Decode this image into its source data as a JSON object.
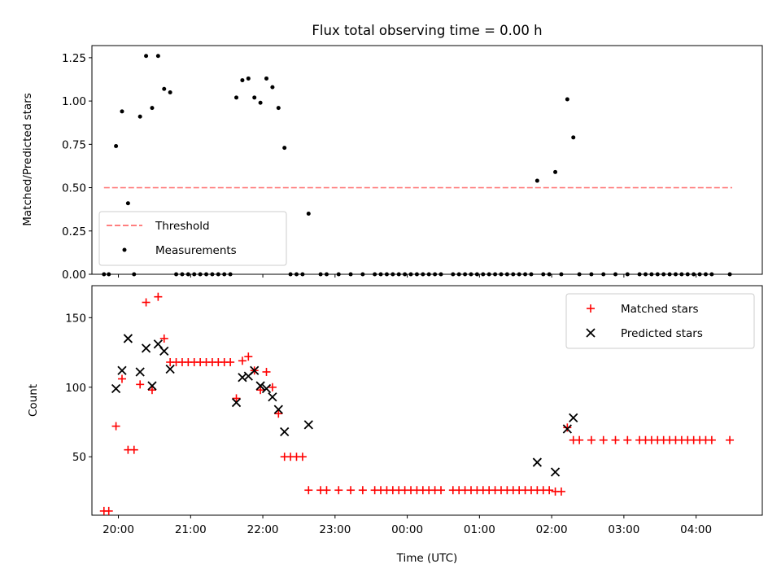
{
  "title": "Flux total observing time = 0.00 h",
  "colors": {
    "threshold": "#ff7f7f",
    "measurement": "#000000",
    "matched": "#ff0000",
    "predicted": "#000000"
  },
  "chart_data": [
    {
      "type": "scatter",
      "ylabel": "Matched/Predicted stars",
      "xlim": [
        "19:38",
        "04:55"
      ],
      "ylim": [
        0,
        1.32
      ],
      "yticks": [
        "0.00",
        "0.25",
        "0.50",
        "0.75",
        "1.00",
        "1.25"
      ],
      "legend": {
        "placement": "lower-left",
        "entries": [
          "Threshold",
          "Measurements"
        ]
      },
      "threshold": {
        "name": "Threshold",
        "value": 0.5,
        "x": [
          "19:48",
          "04:30"
        ]
      },
      "series": [
        {
          "name": "Measurements",
          "marker": "dot",
          "points": [
            [
              "19:48",
              0
            ],
            [
              "19:52",
              0
            ],
            [
              "19:58",
              0.74
            ],
            [
              "20:03",
              0.94
            ],
            [
              "20:08",
              0.41
            ],
            [
              "20:13",
              0
            ],
            [
              "20:18",
              0.91
            ],
            [
              "20:23",
              1.26
            ],
            [
              "20:28",
              0.96
            ],
            [
              "20:33",
              1.26
            ],
            [
              "20:38",
              1.07
            ],
            [
              "20:43",
              1.05
            ],
            [
              "20:48",
              0
            ],
            [
              "20:53",
              0
            ],
            [
              "20:58",
              0
            ],
            [
              "21:03",
              0
            ],
            [
              "21:08",
              0
            ],
            [
              "21:13",
              0
            ],
            [
              "21:18",
              0
            ],
            [
              "21:23",
              0
            ],
            [
              "21:28",
              0
            ],
            [
              "21:33",
              0
            ],
            [
              "21:38",
              1.02
            ],
            [
              "21:43",
              1.12
            ],
            [
              "21:48",
              1.13
            ],
            [
              "21:53",
              1.02
            ],
            [
              "21:58",
              0.99
            ],
            [
              "22:03",
              1.13
            ],
            [
              "22:08",
              1.08
            ],
            [
              "22:13",
              0.96
            ],
            [
              "22:18",
              0.73
            ],
            [
              "22:23",
              0
            ],
            [
              "22:28",
              0
            ],
            [
              "22:33",
              0
            ],
            [
              "22:38",
              0.35
            ],
            [
              "22:48",
              0
            ],
            [
              "22:53",
              0
            ],
            [
              "23:03",
              0
            ],
            [
              "23:13",
              0
            ],
            [
              "23:23",
              0
            ],
            [
              "23:33",
              0
            ],
            [
              "23:38",
              0
            ],
            [
              "23:43",
              0
            ],
            [
              "23:48",
              0
            ],
            [
              "23:53",
              0
            ],
            [
              "23:58",
              0
            ],
            [
              "00:03",
              0
            ],
            [
              "00:08",
              0
            ],
            [
              "00:13",
              0
            ],
            [
              "00:18",
              0
            ],
            [
              "00:23",
              0
            ],
            [
              "00:28",
              0
            ],
            [
              "00:38",
              0
            ],
            [
              "00:43",
              0
            ],
            [
              "00:48",
              0
            ],
            [
              "00:53",
              0
            ],
            [
              "00:58",
              0
            ],
            [
              "01:03",
              0
            ],
            [
              "01:08",
              0
            ],
            [
              "01:13",
              0
            ],
            [
              "01:18",
              0
            ],
            [
              "01:23",
              0
            ],
            [
              "01:28",
              0
            ],
            [
              "01:33",
              0
            ],
            [
              "01:38",
              0
            ],
            [
              "01:43",
              0
            ],
            [
              "01:48",
              0.54
            ],
            [
              "01:53",
              0
            ],
            [
              "01:58",
              0
            ],
            [
              "02:03",
              0.59
            ],
            [
              "02:08",
              0
            ],
            [
              "02:13",
              1.01
            ],
            [
              "02:18",
              0.79
            ],
            [
              "02:23",
              0
            ],
            [
              "02:33",
              0
            ],
            [
              "02:43",
              0
            ],
            [
              "02:53",
              0
            ],
            [
              "03:03",
              0
            ],
            [
              "03:13",
              0
            ],
            [
              "03:18",
              0
            ],
            [
              "03:23",
              0
            ],
            [
              "03:28",
              0
            ],
            [
              "03:33",
              0
            ],
            [
              "03:38",
              0
            ],
            [
              "03:43",
              0
            ],
            [
              "03:48",
              0
            ],
            [
              "03:53",
              0
            ],
            [
              "03:58",
              0
            ],
            [
              "04:03",
              0
            ],
            [
              "04:08",
              0
            ],
            [
              "04:13",
              0
            ],
            [
              "04:28",
              0
            ]
          ]
        }
      ]
    },
    {
      "type": "scatter",
      "ylabel": "Count",
      "xlabel": "Time (UTC)",
      "xlim": [
        "19:38",
        "04:55"
      ],
      "ylim": [
        8,
        173
      ],
      "yticks": [
        "50",
        "100",
        "150"
      ],
      "xticks": [
        "20:00",
        "21:00",
        "22:00",
        "23:00",
        "00:00",
        "01:00",
        "02:00",
        "03:00",
        "04:00"
      ],
      "legend": {
        "placement": "upper-right",
        "entries": [
          "Matched stars",
          "Predicted stars"
        ]
      },
      "series": [
        {
          "name": "Matched stars",
          "marker": "plus",
          "points": [
            [
              "19:48",
              11
            ],
            [
              "19:52",
              11
            ],
            [
              "19:58",
              72
            ],
            [
              "20:03",
              106
            ],
            [
              "20:08",
              55
            ],
            [
              "20:13",
              55
            ],
            [
              "20:18",
              102
            ],
            [
              "20:23",
              161
            ],
            [
              "20:28",
              98
            ],
            [
              "20:33",
              165
            ],
            [
              "20:38",
              135
            ],
            [
              "20:43",
              118
            ],
            [
              "20:48",
              118
            ],
            [
              "20:53",
              118
            ],
            [
              "20:58",
              118
            ],
            [
              "21:03",
              118
            ],
            [
              "21:08",
              118
            ],
            [
              "21:13",
              118
            ],
            [
              "21:18",
              118
            ],
            [
              "21:23",
              118
            ],
            [
              "21:28",
              118
            ],
            [
              "21:33",
              118
            ],
            [
              "21:38",
              92
            ],
            [
              "21:43",
              119
            ],
            [
              "21:48",
              122
            ],
            [
              "21:53",
              112
            ],
            [
              "21:58",
              98
            ],
            [
              "22:03",
              111
            ],
            [
              "22:08",
              100
            ],
            [
              "22:13",
              81
            ],
            [
              "22:18",
              50
            ],
            [
              "22:23",
              50
            ],
            [
              "22:28",
              50
            ],
            [
              "22:33",
              50
            ],
            [
              "22:38",
              26
            ],
            [
              "22:48",
              26
            ],
            [
              "22:53",
              26
            ],
            [
              "23:03",
              26
            ],
            [
              "23:13",
              26
            ],
            [
              "23:23",
              26
            ],
            [
              "23:33",
              26
            ],
            [
              "23:38",
              26
            ],
            [
              "23:43",
              26
            ],
            [
              "23:48",
              26
            ],
            [
              "23:53",
              26
            ],
            [
              "23:58",
              26
            ],
            [
              "00:03",
              26
            ],
            [
              "00:08",
              26
            ],
            [
              "00:13",
              26
            ],
            [
              "00:18",
              26
            ],
            [
              "00:23",
              26
            ],
            [
              "00:28",
              26
            ],
            [
              "00:38",
              26
            ],
            [
              "00:43",
              26
            ],
            [
              "00:48",
              26
            ],
            [
              "00:53",
              26
            ],
            [
              "00:58",
              26
            ],
            [
              "01:03",
              26
            ],
            [
              "01:08",
              26
            ],
            [
              "01:13",
              26
            ],
            [
              "01:18",
              26
            ],
            [
              "01:23",
              26
            ],
            [
              "01:28",
              26
            ],
            [
              "01:33",
              26
            ],
            [
              "01:38",
              26
            ],
            [
              "01:43",
              26
            ],
            [
              "01:48",
              26
            ],
            [
              "01:53",
              26
            ],
            [
              "01:58",
              26
            ],
            [
              "02:03",
              25
            ],
            [
              "02:08",
              25
            ],
            [
              "02:13",
              71
            ],
            [
              "02:18",
              62
            ],
            [
              "02:23",
              62
            ],
            [
              "02:33",
              62
            ],
            [
              "02:43",
              62
            ],
            [
              "02:53",
              62
            ],
            [
              "03:03",
              62
            ],
            [
              "03:13",
              62
            ],
            [
              "03:18",
              62
            ],
            [
              "03:23",
              62
            ],
            [
              "03:28",
              62
            ],
            [
              "03:33",
              62
            ],
            [
              "03:38",
              62
            ],
            [
              "03:43",
              62
            ],
            [
              "03:48",
              62
            ],
            [
              "03:53",
              62
            ],
            [
              "03:58",
              62
            ],
            [
              "04:03",
              62
            ],
            [
              "04:08",
              62
            ],
            [
              "04:13",
              62
            ],
            [
              "04:28",
              62
            ]
          ]
        },
        {
          "name": "Predicted stars",
          "marker": "x",
          "points": [
            [
              "19:58",
              99
            ],
            [
              "20:03",
              112
            ],
            [
              "20:08",
              135
            ],
            [
              "20:18",
              111
            ],
            [
              "20:23",
              128
            ],
            [
              "20:28",
              101
            ],
            [
              "20:33",
              131
            ],
            [
              "20:38",
              126
            ],
            [
              "20:43",
              113
            ],
            [
              "21:38",
              89
            ],
            [
              "21:43",
              107
            ],
            [
              "21:48",
              108
            ],
            [
              "21:53",
              112
            ],
            [
              "21:58",
              101
            ],
            [
              "22:03",
              99
            ],
            [
              "22:08",
              93
            ],
            [
              "22:13",
              84
            ],
            [
              "22:18",
              68
            ],
            [
              "22:38",
              73
            ],
            [
              "01:48",
              46
            ],
            [
              "02:03",
              39
            ],
            [
              "02:13",
              70
            ],
            [
              "02:18",
              78
            ]
          ]
        }
      ]
    }
  ]
}
